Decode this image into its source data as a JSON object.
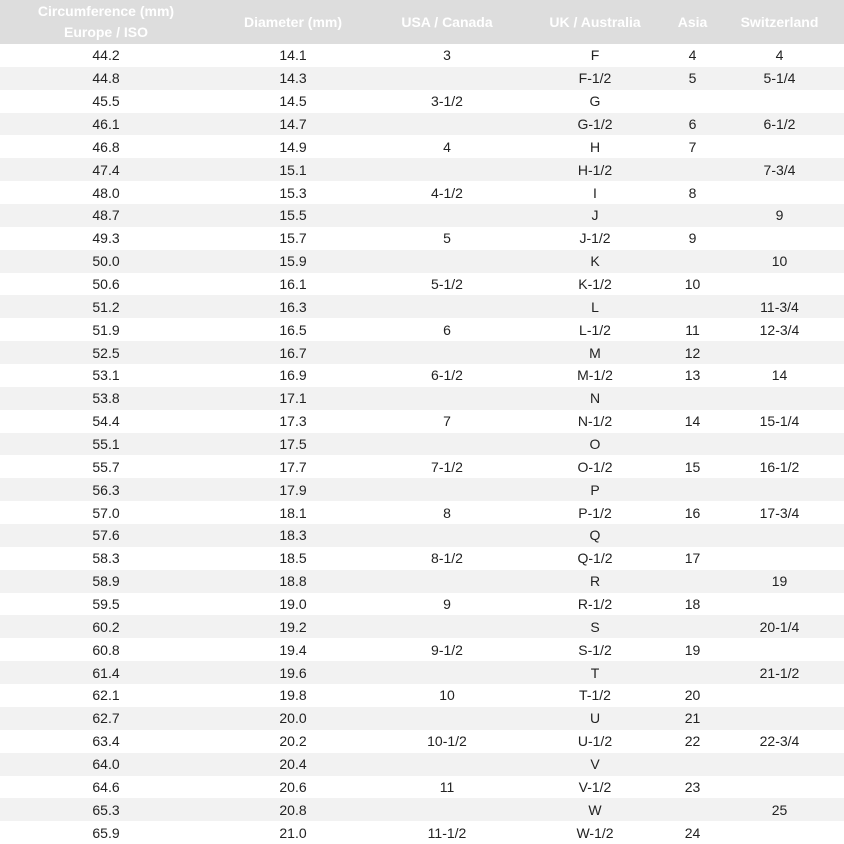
{
  "colors": {
    "header_bg": "#dddddd",
    "header_text": "#ffffff",
    "row_alt": "#f2f2f2"
  },
  "headers": [
    "Circumference (mm)\nEurope / ISO",
    "Diameter (mm)",
    "USA / Canada",
    "UK / Australia",
    "Asia",
    "Switzerland"
  ],
  "rows": [
    [
      "44.2",
      "14.1",
      "3",
      "F",
      "4",
      "4"
    ],
    [
      "44.8",
      "14.3",
      "",
      "F-1/2",
      "5",
      "5-1/4"
    ],
    [
      "45.5",
      "14.5",
      "3-1/2",
      "G",
      "",
      ""
    ],
    [
      "46.1",
      "14.7",
      "",
      "G-1/2",
      "6",
      "6-1/2"
    ],
    [
      "46.8",
      "14.9",
      "4",
      "H",
      "7",
      ""
    ],
    [
      "47.4",
      "15.1",
      "",
      "H-1/2",
      "",
      "7-3/4"
    ],
    [
      "48.0",
      "15.3",
      "4-1/2",
      "I",
      "8",
      ""
    ],
    [
      "48.7",
      "15.5",
      "",
      "J",
      "",
      "9"
    ],
    [
      "49.3",
      "15.7",
      "5",
      "J-1/2",
      "9",
      ""
    ],
    [
      "50.0",
      "15.9",
      "",
      "K",
      "",
      "10"
    ],
    [
      "50.6",
      "16.1",
      "5-1/2",
      "K-1/2",
      "10",
      ""
    ],
    [
      "51.2",
      "16.3",
      "",
      "L",
      "",
      "11-3/4"
    ],
    [
      "51.9",
      "16.5",
      "6",
      "L-1/2",
      "11",
      "12-3/4"
    ],
    [
      "52.5",
      "16.7",
      "",
      "M",
      "12",
      ""
    ],
    [
      "53.1",
      "16.9",
      "6-1/2",
      "M-1/2",
      "13",
      "14"
    ],
    [
      "53.8",
      "17.1",
      "",
      "N",
      "",
      ""
    ],
    [
      "54.4",
      "17.3",
      "7",
      "N-1/2",
      "14",
      "15-1/4"
    ],
    [
      "55.1",
      "17.5",
      "",
      "O",
      "",
      ""
    ],
    [
      "55.7",
      "17.7",
      "7-1/2",
      "O-1/2",
      "15",
      "16-1/2"
    ],
    [
      "56.3",
      "17.9",
      "",
      "P",
      "",
      ""
    ],
    [
      "57.0",
      "18.1",
      "8",
      "P-1/2",
      "16",
      "17-3/4"
    ],
    [
      "57.6",
      "18.3",
      "",
      "Q",
      "",
      ""
    ],
    [
      "58.3",
      "18.5",
      "8-1/2",
      "Q-1/2",
      "17",
      ""
    ],
    [
      "58.9",
      "18.8",
      "",
      "R",
      "",
      "19"
    ],
    [
      "59.5",
      "19.0",
      "9",
      "R-1/2",
      "18",
      ""
    ],
    [
      "60.2",
      "19.2",
      "",
      "S",
      "",
      "20-1/4"
    ],
    [
      "60.8",
      "19.4",
      "9-1/2",
      "S-1/2",
      "19",
      ""
    ],
    [
      "61.4",
      "19.6",
      "",
      "T",
      "",
      "21-1/2"
    ],
    [
      "62.1",
      "19.8",
      "10",
      "T-1/2",
      "20",
      ""
    ],
    [
      "62.7",
      "20.0",
      "",
      "U",
      "21",
      ""
    ],
    [
      "63.4",
      "20.2",
      "10-1/2",
      "U-1/2",
      "22",
      "22-3/4"
    ],
    [
      "64.0",
      "20.4",
      "",
      "V",
      "",
      ""
    ],
    [
      "64.6",
      "20.6",
      "11",
      "V-1/2",
      "23",
      ""
    ],
    [
      "65.3",
      "20.8",
      "",
      "W",
      "",
      "25"
    ],
    [
      "65.9",
      "21.0",
      "11-1/2",
      "W-1/2",
      "24",
      ""
    ]
  ]
}
